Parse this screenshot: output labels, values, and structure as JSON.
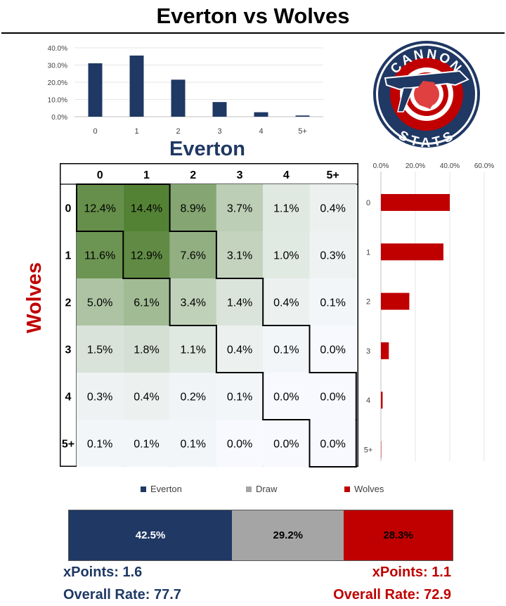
{
  "header": {
    "title": "Everton vs Wolves"
  },
  "chart_data": [
    {
      "type": "bar",
      "orientation": "vertical",
      "team": "Everton",
      "categories": [
        "0",
        "1",
        "2",
        "3",
        "4",
        "5+"
      ],
      "values": [
        31.0,
        35.5,
        21.5,
        8.5,
        2.6,
        0.7
      ],
      "ylim": [
        0,
        40
      ],
      "yticks": [
        "0.0%",
        "10.0%",
        "20.0%",
        "30.0%",
        "40.0%"
      ],
      "color": "#1f3864"
    },
    {
      "type": "heatmap",
      "xlabel": "Everton",
      "ylabel": "Wolves",
      "x_categories": [
        "0",
        "1",
        "2",
        "3",
        "4",
        "5+"
      ],
      "y_categories": [
        "0",
        "1",
        "2",
        "3",
        "4",
        "5+"
      ],
      "values": [
        [
          "12.4%",
          "14.4%",
          "8.9%",
          "3.7%",
          "1.1%",
          "0.4%"
        ],
        [
          "11.6%",
          "12.9%",
          "7.6%",
          "3.1%",
          "1.0%",
          "0.3%"
        ],
        [
          "5.0%",
          "6.1%",
          "3.4%",
          "1.4%",
          "0.4%",
          "0.1%"
        ],
        [
          "1.5%",
          "1.8%",
          "1.1%",
          "0.4%",
          "0.1%",
          "0.0%"
        ],
        [
          "0.3%",
          "0.4%",
          "0.2%",
          "0.1%",
          "0.0%",
          "0.0%"
        ],
        [
          "0.1%",
          "0.1%",
          "0.1%",
          "0.0%",
          "0.0%",
          "0.0%"
        ]
      ],
      "color_low": "#f7f9fe",
      "color_high": "#548235"
    },
    {
      "type": "bar",
      "orientation": "horizontal",
      "team": "Wolves",
      "categories": [
        "0",
        "1",
        "2",
        "3",
        "4",
        "5+"
      ],
      "values": [
        40.0,
        36.3,
        16.5,
        4.6,
        1.0,
        0.2
      ],
      "xlim": [
        0,
        60
      ],
      "xticks": [
        "0.0%",
        "20.0%",
        "40.0%",
        "60.0%"
      ],
      "color": "#c00000"
    },
    {
      "type": "bar",
      "orientation": "stacked-horizontal",
      "series": [
        {
          "name": "Everton",
          "value": 42.5,
          "label": "42.5%",
          "color": "#1f3864",
          "text_color": "#ffffff"
        },
        {
          "name": "Draw",
          "value": 29.2,
          "label": "29.2%",
          "color": "#a5a5a5",
          "text_color": "#000000"
        },
        {
          "name": "Wolves",
          "value": 28.3,
          "label": "28.3%",
          "color": "#c00000",
          "text_color": "#000000"
        }
      ],
      "legend": "top"
    }
  ],
  "logo": {
    "top_text": "CANNON",
    "bottom_text": "STATS",
    "colors": {
      "ring": "#1f3864",
      "outer": "#c00000",
      "cannon": "#1f3864",
      "target": "#e04040"
    }
  },
  "everton": {
    "xpoints": "xPoints: 1.6",
    "rate": "Overall Rate: 77.7"
  },
  "wolves": {
    "xpoints": "xPoints: 1.1",
    "rate": "Overall Rate: 72.9"
  }
}
